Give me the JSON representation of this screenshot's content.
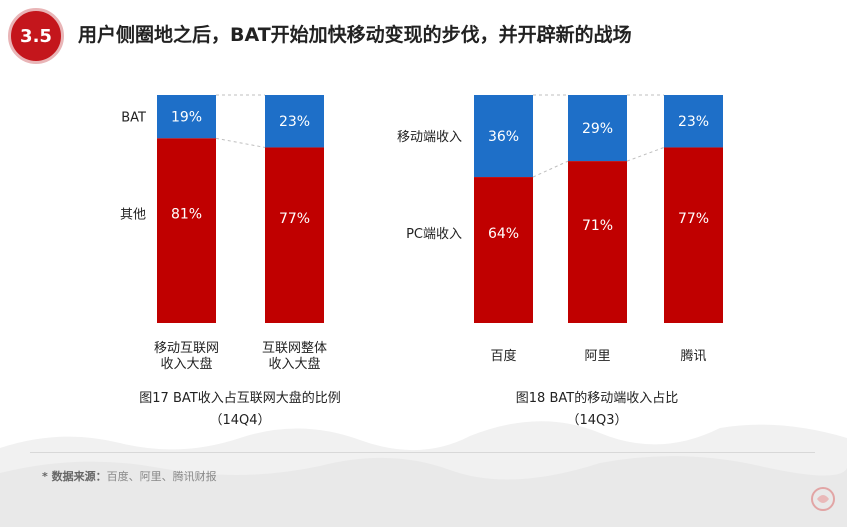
{
  "header": {
    "section_number": "3.5",
    "title": "用户侧圈地之后，BAT开始加快移动变现的步伐，并开辟新的战场"
  },
  "footnote": {
    "prefix": "* 数据来源：",
    "text": "百度、阿里、腾讯财报"
  },
  "colors": {
    "top_segment": "#1E6FC8",
    "bottom_segment": "#C00000",
    "badge": "#C4161C"
  },
  "chart_data": [
    {
      "type": "bar",
      "stacked": true,
      "categories": [
        "移动互联网\n收入大盘",
        "互联网整体\n收入大盘"
      ],
      "category_lines": [
        [
          "移动互联网",
          "收入大盘"
        ],
        [
          "互联网整体",
          "收入大盘"
        ]
      ],
      "series": [
        {
          "name": "BAT",
          "values": [
            19,
            23
          ],
          "labels": [
            "19%",
            "23%"
          ],
          "color": "#1E6FC8"
        },
        {
          "name": "其他",
          "values": [
            81,
            77
          ],
          "labels": [
            "81%",
            "77%"
          ],
          "color": "#C00000"
        }
      ],
      "ylim": [
        0,
        100
      ],
      "caption": [
        "图17 BAT收入占互联网大盘的比例",
        "（14Q4）"
      ]
    },
    {
      "type": "bar",
      "stacked": true,
      "categories": [
        "百度",
        "阿里",
        "腾讯"
      ],
      "category_lines": [
        [
          "百度"
        ],
        [
          "阿里"
        ],
        [
          "腾讯"
        ]
      ],
      "series": [
        {
          "name": "移动端收入",
          "values": [
            36,
            29,
            23
          ],
          "labels": [
            "36%",
            "29%",
            "23%"
          ],
          "color": "#1E6FC8"
        },
        {
          "name": "PC端收入",
          "values": [
            64,
            71,
            77
          ],
          "labels": [
            "64%",
            "71%",
            "77%"
          ],
          "color": "#C00000"
        }
      ],
      "ylim": [
        0,
        100
      ],
      "caption": [
        "图18 BAT的移动端收入占比",
        "（14Q3）"
      ]
    }
  ]
}
